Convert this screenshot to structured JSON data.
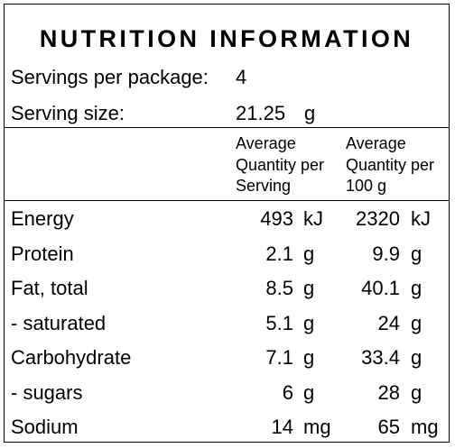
{
  "title": "NUTRITION INFORMATION",
  "servings": {
    "label": "Servings per package:",
    "value": "4"
  },
  "serving_size": {
    "label": "Serving size:",
    "value": "21.25",
    "unit": "g"
  },
  "columns": {
    "per_serving": [
      "Average",
      "Quantity per",
      "Serving"
    ],
    "per_100g": [
      "Average",
      "Quantity per",
      "100 g"
    ]
  },
  "rows": [
    {
      "name": "Energy",
      "serving_value": "493",
      "serving_unit": "kJ",
      "per100_value": "2320",
      "per100_unit": "kJ"
    },
    {
      "name": "Protein",
      "serving_value": "2.1",
      "serving_unit": "g",
      "per100_value": "9.9",
      "per100_unit": "g"
    },
    {
      "name": "Fat, total",
      "serving_value": "8.5",
      "serving_unit": "g",
      "per100_value": "40.1",
      "per100_unit": "g"
    },
    {
      "name": "- saturated",
      "serving_value": "5.1",
      "serving_unit": "g",
      "per100_value": "24",
      "per100_unit": "g"
    },
    {
      "name": "Carbohydrate",
      "serving_value": "7.1",
      "serving_unit": "g",
      "per100_value": "33.4",
      "per100_unit": "g"
    },
    {
      "name": "- sugars",
      "serving_value": "6",
      "serving_unit": "g",
      "per100_value": "28",
      "per100_unit": "g"
    },
    {
      "name": "Sodium",
      "serving_value": "14",
      "serving_unit": "mg",
      "per100_value": "65",
      "per100_unit": "mg"
    }
  ]
}
